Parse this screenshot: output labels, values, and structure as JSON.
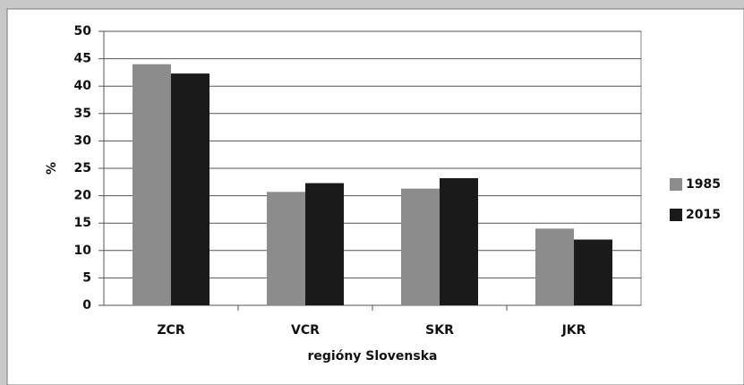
{
  "chart_data": {
    "type": "bar",
    "categories": [
      "ZCR",
      "VCR",
      "SKR",
      "JKR"
    ],
    "series": [
      {
        "name": "1985",
        "color": "#8c8c8c",
        "values": [
          44,
          20.7,
          21.3,
          14
        ]
      },
      {
        "name": "2015",
        "color": "#1a1a1a",
        "values": [
          42.3,
          22.3,
          23.2,
          12
        ]
      }
    ],
    "ylabel": "%",
    "xlabel": "regióny Slovenska",
    "ylim": [
      0,
      50
    ],
    "yticks": [
      0,
      5,
      10,
      15,
      20,
      25,
      30,
      35,
      40,
      45,
      50
    ],
    "grid": true,
    "legend": "right"
  }
}
